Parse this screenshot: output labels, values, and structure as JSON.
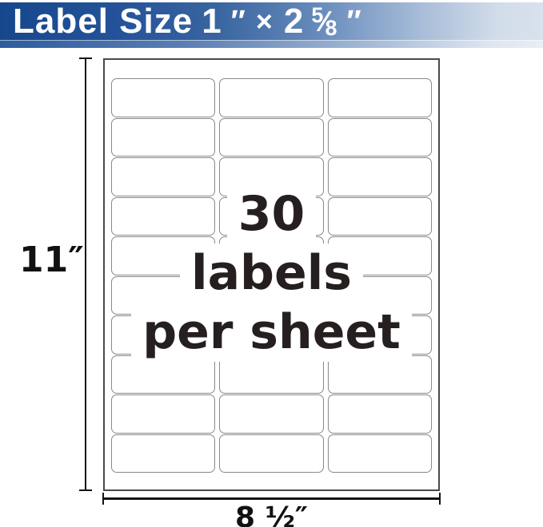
{
  "banner": {
    "prefix": "Label Size",
    "width_value": "1",
    "inch_mark": "″",
    "times": "×",
    "height_whole": "2",
    "fraction_numerator": "5",
    "fraction_slash": "⁄",
    "fraction_denominator": "8",
    "gradient_start_color": "#16478c",
    "gradient_end_color": "#d8e1ec",
    "text_color": "#ffffff"
  },
  "sheet": {
    "grid": {
      "columns": 3,
      "rows": 10,
      "total_labels": 30,
      "cell_border_color": "#898989",
      "sheet_border_color": "#4a4a4a"
    },
    "overlay_lines": [
      "30",
      "labels",
      "per sheet"
    ],
    "overlay_text_color": "#261f20"
  },
  "dimensions": {
    "height_label": "11″",
    "width_label": "8 ½″",
    "line_color": "#141414"
  }
}
